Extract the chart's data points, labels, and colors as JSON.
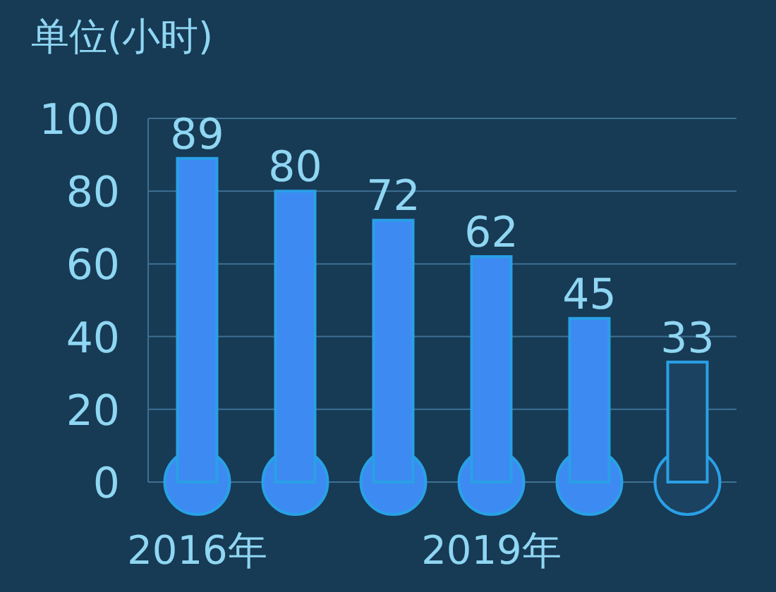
{
  "chart_data": {
    "type": "bar",
    "ylabel": "单位(小时)",
    "categories": [
      "2016年",
      null,
      null,
      "2019年",
      null,
      null
    ],
    "values": [
      89,
      80,
      72,
      62,
      45,
      33
    ],
    "colors": [
      "#3d8af2",
      "#3d8af2",
      "#3d8af2",
      "#3d8af2",
      "#3d8af2",
      "#1b4260"
    ],
    "ylim": [
      0,
      100
    ],
    "yticks": [
      0,
      20,
      40,
      60,
      80,
      100
    ],
    "grid": "y",
    "data_labels": true
  }
}
